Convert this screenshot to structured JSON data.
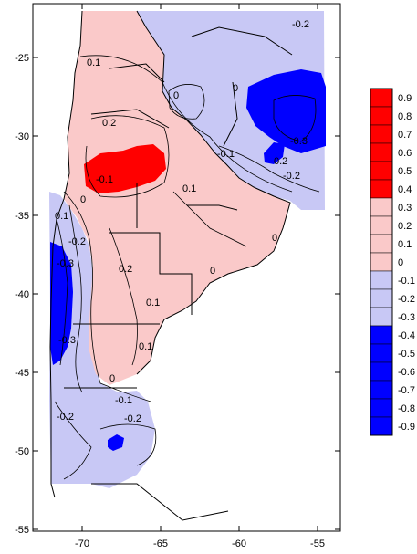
{
  "map": {
    "x_ticks": [
      "-70",
      "-65",
      "-60",
      "-55"
    ],
    "y_ticks": [
      "-25",
      "-30",
      "-35",
      "-40",
      "-45",
      "-50",
      "-55"
    ],
    "contour_labels": [
      "-0.2",
      "0.1",
      "0.2",
      "0.1",
      "-0.1",
      "0",
      "-0.3",
      "-0.2",
      "0.1",
      "0",
      "0",
      "0.2",
      "0.1",
      "0",
      "-0.1",
      "-0.2",
      "-0.3",
      "0.1",
      "0",
      "-0.1",
      "-0.2",
      "-0.3",
      "-0.2",
      "0",
      "0.2"
    ],
    "colors": {
      "strong_positive": "#ff0000",
      "weak_positive": "#fac9c9",
      "weak_negative": "#c8c8f5",
      "strong_negative": "#0000ff"
    }
  },
  "legend": {
    "entries": [
      {
        "label": "0.9",
        "color": "#ff0000"
      },
      {
        "label": "0.8",
        "color": "#ff0000"
      },
      {
        "label": "0.7",
        "color": "#ff0000"
      },
      {
        "label": "0.6",
        "color": "#ff0000"
      },
      {
        "label": "0.5",
        "color": "#ff0000"
      },
      {
        "label": "0.4",
        "color": "#ff0000"
      },
      {
        "label": "0.3",
        "color": "#fac9c9"
      },
      {
        "label": "0.2",
        "color": "#fac9c9"
      },
      {
        "label": "0.1",
        "color": "#fac9c9"
      },
      {
        "label": "0",
        "color": "#fac9c9"
      },
      {
        "label": "-0.1",
        "color": "#c8c8f5"
      },
      {
        "label": "-0.2",
        "color": "#c8c8f5"
      },
      {
        "label": "-0.3",
        "color": "#c8c8f5"
      },
      {
        "label": "-0.4",
        "color": "#0000ff"
      },
      {
        "label": "-0.5",
        "color": "#0000ff"
      },
      {
        "label": "-0.6",
        "color": "#0000ff"
      },
      {
        "label": "-0.7",
        "color": "#0000ff"
      },
      {
        "label": "-0.8",
        "color": "#0000ff"
      },
      {
        "label": "-0.9",
        "color": "#0000ff"
      }
    ]
  }
}
